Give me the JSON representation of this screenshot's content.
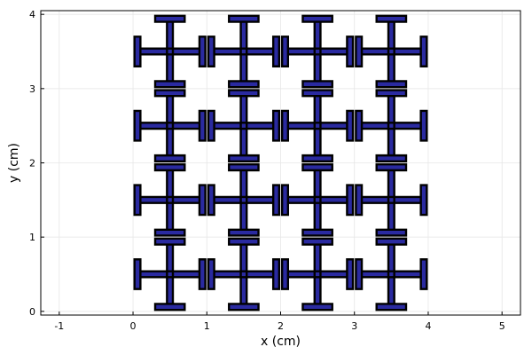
{
  "chart_data": {
    "type": "scatter",
    "title": "",
    "xlabel": "x (cm)",
    "ylabel": "y (cm)",
    "xlim": [
      -1.25,
      5.25
    ],
    "ylim": [
      -0.05,
      4.05
    ],
    "xticks": [
      -1,
      0,
      1,
      2,
      3,
      4,
      5
    ],
    "xtick_labels": [
      "-1",
      "0",
      "1",
      "2",
      "3",
      "4",
      "5"
    ],
    "yticks": [
      0,
      1,
      2,
      3,
      4
    ],
    "ytick_labels": [
      "0",
      "1",
      "2",
      "3",
      "4"
    ],
    "grid": true,
    "legend": "none",
    "fill_color": "#2a2aa0",
    "edge_color": "#000000",
    "shape": "jerusalem-cross unit cell (mesh)",
    "cell_pitch_cm": 1.0,
    "cell_centers": {
      "x": [
        0.5,
        1.5,
        2.5,
        3.5
      ],
      "y": [
        0.5,
        1.5,
        2.5,
        3.5
      ]
    },
    "cell_geometry_cm": {
      "arm_half_length": 0.4,
      "arm_half_width": 0.04,
      "cap_half_length": 0.2,
      "cap_thickness": 0.08
    }
  }
}
